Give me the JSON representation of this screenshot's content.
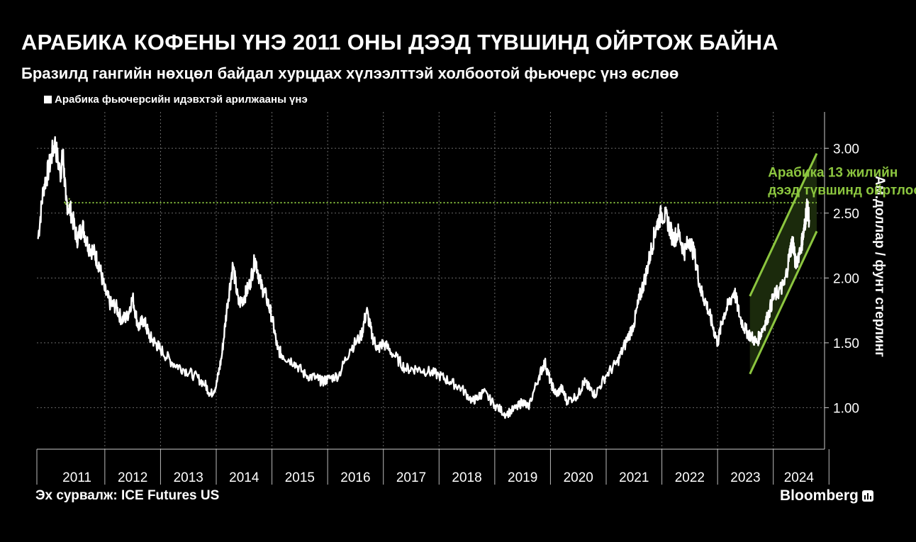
{
  "title": "АРАБИКА КОФЕНЫ ҮНЭ 2011 ОНЫ ДЭЭД ТҮВШИНД ОЙРТОЖ БАЙНА",
  "subtitle": "Бразилд гангийн нөхцөл байдал хурцдах хүлээлттэй холбоотой фьючерс үнэ өслөө",
  "source": "Эх сурвалж: ICE Futures US",
  "brand": "Bloomberg",
  "brand_icon": "bloomberg-chart-icon",
  "colors": {
    "background": "#000000",
    "line": "#ffffff",
    "grid": "#6a6a6a",
    "annotation": "#8cc63f",
    "channel_fill": "#1b2a0c"
  },
  "chart_data": {
    "type": "line",
    "title": "АРАБИКА КОФЕНЫ ҮНЭ 2011 ОНЫ ДЭЭД ТҮВШИНД ОЙРТОЖ БАЙНА",
    "subtitle": "Бразилд гангийн нөхцөл байдал хурцдах хүлээлттэй холбоотой фьючерс үнэ өслөө",
    "ylabel": "Ам.доллар / фунт стерлинг",
    "xlabel": "",
    "ylim": [
      0.68,
      3.28
    ],
    "yticks": [
      1.0,
      1.5,
      2.0,
      2.5,
      3.0
    ],
    "ytick_labels": [
      "1.00",
      "1.50",
      "2.00",
      "2.50",
      "3.00"
    ],
    "xlim": [
      2010.78,
      2024.92
    ],
    "xticks": [
      2011,
      2012,
      2013,
      2014,
      2015,
      2016,
      2017,
      2018,
      2019,
      2020,
      2021,
      2022,
      2023,
      2024
    ],
    "xtick_labels": [
      "2011",
      "2012",
      "2013",
      "2014",
      "2015",
      "2016",
      "2017",
      "2018",
      "2019",
      "2020",
      "2021",
      "2022",
      "2023",
      "2024"
    ],
    "grid": true,
    "legend_position": "top-left",
    "series": [
      {
        "name": "Арабика фьючерсийн идэвхтэй арилжааны үнэ",
        "x": [
          2010.8,
          2010.9,
          2011.0,
          2011.1,
          2011.2,
          2011.25,
          2011.3,
          2011.4,
          2011.5,
          2011.6,
          2011.7,
          2011.8,
          2011.9,
          2012.0,
          2012.1,
          2012.2,
          2012.3,
          2012.4,
          2012.5,
          2012.6,
          2012.7,
          2012.8,
          2012.9,
          2013.0,
          2013.2,
          2013.4,
          2013.6,
          2013.8,
          2013.9,
          2014.0,
          2014.1,
          2014.2,
          2014.3,
          2014.4,
          2014.5,
          2014.6,
          2014.7,
          2014.8,
          2014.9,
          2015.0,
          2015.1,
          2015.2,
          2015.4,
          2015.6,
          2015.8,
          2015.9,
          2016.0,
          2016.2,
          2016.4,
          2016.6,
          2016.7,
          2016.8,
          2016.9,
          2017.0,
          2017.2,
          2017.4,
          2017.6,
          2017.8,
          2018.0,
          2018.2,
          2018.4,
          2018.6,
          2018.7,
          2018.8,
          2019.0,
          2019.2,
          2019.4,
          2019.5,
          2019.6,
          2019.8,
          2019.9,
          2020.0,
          2020.1,
          2020.2,
          2020.3,
          2020.5,
          2020.6,
          2020.7,
          2020.8,
          2021.0,
          2021.2,
          2021.35,
          2021.5,
          2021.6,
          2021.7,
          2021.8,
          2021.9,
          2022.0,
          2022.1,
          2022.2,
          2022.3,
          2022.4,
          2022.5,
          2022.6,
          2022.7,
          2022.8,
          2022.9,
          2023.0,
          2023.1,
          2023.2,
          2023.3,
          2023.4,
          2023.5,
          2023.6,
          2023.7,
          2023.8,
          2023.9,
          2024.0,
          2024.1,
          2024.2,
          2024.3,
          2024.35,
          2024.4,
          2024.5,
          2024.55,
          2024.6,
          2024.65
        ],
        "values": [
          2.3,
          2.7,
          2.85,
          3.05,
          2.8,
          2.95,
          2.6,
          2.5,
          2.3,
          2.4,
          2.25,
          2.2,
          2.1,
          1.9,
          1.8,
          1.78,
          1.68,
          1.7,
          1.85,
          1.62,
          1.68,
          1.55,
          1.5,
          1.45,
          1.35,
          1.3,
          1.25,
          1.18,
          1.1,
          1.17,
          1.4,
          1.8,
          2.1,
          1.8,
          1.85,
          1.95,
          2.15,
          1.95,
          1.85,
          1.7,
          1.45,
          1.4,
          1.35,
          1.25,
          1.23,
          1.2,
          1.22,
          1.25,
          1.45,
          1.55,
          1.75,
          1.55,
          1.45,
          1.5,
          1.4,
          1.3,
          1.3,
          1.28,
          1.25,
          1.2,
          1.15,
          1.05,
          1.08,
          1.12,
          1.02,
          0.95,
          1.0,
          1.05,
          1.0,
          1.25,
          1.35,
          1.2,
          1.1,
          1.15,
          1.05,
          1.1,
          1.2,
          1.15,
          1.1,
          1.25,
          1.35,
          1.5,
          1.65,
          1.85,
          2.0,
          2.2,
          2.4,
          2.5,
          2.45,
          2.3,
          2.35,
          2.2,
          2.3,
          2.15,
          1.9,
          1.8,
          1.65,
          1.5,
          1.7,
          1.8,
          1.9,
          1.7,
          1.6,
          1.55,
          1.5,
          1.6,
          1.7,
          1.85,
          1.9,
          1.95,
          2.2,
          2.3,
          2.1,
          2.25,
          2.35,
          2.55,
          2.45
        ]
      }
    ],
    "reference_line": {
      "y": 2.58,
      "from_x": 2011.27,
      "to_x": 2024.78,
      "style": "dotted"
    },
    "peak_2011": {
      "x": 2011.06,
      "y": 3.06
    },
    "channel": {
      "lower": [
        [
          2023.58,
          1.26
        ],
        [
          2024.78,
          2.36
        ]
      ],
      "upper": [
        [
          2023.58,
          1.86
        ],
        [
          2024.78,
          2.96
        ]
      ]
    },
    "annotations": [
      {
        "lines": [
          "Арабика 13 жилийн",
          "дээд түвшинд ойртлоо"
        ],
        "x": 2023.65,
        "y": 2.78
      }
    ]
  }
}
